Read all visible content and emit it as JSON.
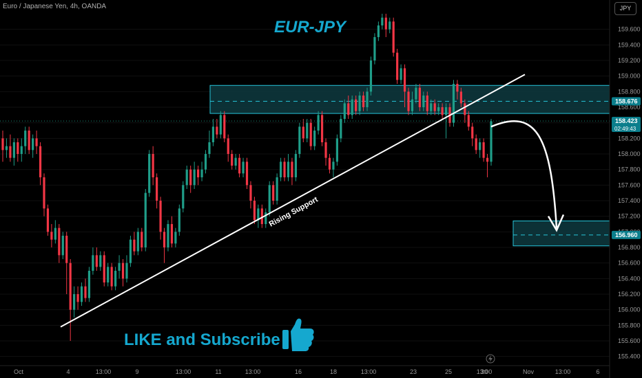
{
  "header": {
    "symbol_line": "Euro / Japanese Yen, 4h, OANDA",
    "currency": "JPY"
  },
  "overlay_text": {
    "title": "EUR-JPY",
    "trendline_label": "Rising Support",
    "cta": "LIKE and Subscribe"
  },
  "icons": {
    "thumbs_up": "thumbs-up-icon",
    "lightning": "lightning-icon"
  },
  "colors": {
    "up": "#1f9e89",
    "down": "#f23645",
    "zone_fill": "#0e3a40",
    "zone_border": "#26c6da",
    "title": "#15a8cf",
    "cta": "#15a8cf",
    "price_tag": "#0b7e8c",
    "grid": "#111111"
  },
  "price_axis": {
    "ticks": [
      "159.600",
      "159.400",
      "159.200",
      "159.000",
      "158.800",
      "158.600",
      "158.400",
      "158.200",
      "158.000",
      "157.800",
      "157.600",
      "157.400",
      "157.200",
      "157.000",
      "156.800",
      "156.600",
      "156.400",
      "156.200",
      "156.000",
      "155.800",
      "155.600",
      "155.400"
    ],
    "tags": [
      {
        "value": "158.676",
        "sub": "",
        "price": 158.676
      },
      {
        "value": "158.423",
        "sub": "02:49:43",
        "price": 158.423
      },
      {
        "value": "156.960",
        "sub": "",
        "price": 156.96
      }
    ]
  },
  "time_axis": [
    "Oct",
    "4",
    "13:00",
    "9",
    "13:00",
    "11",
    "13:00",
    "16",
    "18",
    "13:00",
    "23",
    "25",
    "13:00",
    "30",
    "Nov",
    "13:00",
    "6"
  ],
  "chart_data": {
    "type": "candlestick",
    "title": "EUR-JPY",
    "ylabel": "JPY",
    "ylim": [
      155.3,
      159.8
    ],
    "x_count": 160,
    "candles": [
      [
        158.2,
        158.05,
        158.3,
        157.9
      ],
      [
        158.05,
        158.1,
        158.2,
        157.95
      ],
      [
        158.1,
        157.95,
        158.25,
        157.9
      ],
      [
        157.95,
        158.15,
        158.2,
        157.85
      ],
      [
        158.15,
        158.0,
        158.2,
        157.9
      ],
      [
        158.0,
        158.1,
        158.2,
        157.9
      ],
      [
        158.1,
        158.3,
        158.35,
        158.0
      ],
      [
        158.3,
        158.05,
        158.35,
        158.0
      ],
      [
        158.05,
        158.2,
        158.25,
        157.95
      ],
      [
        158.2,
        158.1,
        158.3,
        158.0
      ],
      [
        158.1,
        157.7,
        158.15,
        157.6
      ],
      [
        157.7,
        157.3,
        157.75,
        157.2
      ],
      [
        157.3,
        157.0,
        157.35,
        156.95
      ],
      [
        157.0,
        156.9,
        157.1,
        156.8
      ],
      [
        156.9,
        157.05,
        157.15,
        156.85
      ],
      [
        157.05,
        156.7,
        157.1,
        156.6
      ],
      [
        156.7,
        156.95,
        157.0,
        156.65
      ],
      [
        156.95,
        156.6,
        157.0,
        156.2
      ],
      [
        156.6,
        156.0,
        156.65,
        155.6
      ],
      [
        156.0,
        156.2,
        156.3,
        155.9
      ],
      [
        156.2,
        156.1,
        156.3,
        156.0
      ],
      [
        156.1,
        156.3,
        156.35,
        156.05
      ],
      [
        156.3,
        156.15,
        156.4,
        156.1
      ],
      [
        156.15,
        156.5,
        156.55,
        156.1
      ],
      [
        156.5,
        156.7,
        156.8,
        156.45
      ],
      [
        156.7,
        156.55,
        156.8,
        156.5
      ],
      [
        156.55,
        156.7,
        156.75,
        156.5
      ],
      [
        156.7,
        156.35,
        156.75,
        156.3
      ],
      [
        156.35,
        156.55,
        156.6,
        156.3
      ],
      [
        156.55,
        156.3,
        156.6,
        156.25
      ],
      [
        156.3,
        156.5,
        156.55,
        156.25
      ],
      [
        156.5,
        156.6,
        156.7,
        156.4
      ],
      [
        156.6,
        156.4,
        156.65,
        156.3
      ],
      [
        156.4,
        156.6,
        156.7,
        156.35
      ],
      [
        156.6,
        156.9,
        156.95,
        156.55
      ],
      [
        156.9,
        156.75,
        157.0,
        156.7
      ],
      [
        156.75,
        157.0,
        157.05,
        156.7
      ],
      [
        157.0,
        156.8,
        157.05,
        156.75
      ],
      [
        156.8,
        157.5,
        157.55,
        156.75
      ],
      [
        157.5,
        158.0,
        158.05,
        157.45
      ],
      [
        158.0,
        157.7,
        158.1,
        157.6
      ],
      [
        157.7,
        157.4,
        157.75,
        157.3
      ],
      [
        157.4,
        157.0,
        157.45,
        156.9
      ],
      [
        157.0,
        156.8,
        157.05,
        156.6
      ],
      [
        156.8,
        157.1,
        157.15,
        156.75
      ],
      [
        157.1,
        156.85,
        157.2,
        156.8
      ],
      [
        156.85,
        157.0,
        157.05,
        156.8
      ],
      [
        157.0,
        157.3,
        157.35,
        156.95
      ],
      [
        157.3,
        157.6,
        157.65,
        157.25
      ],
      [
        157.6,
        157.8,
        157.85,
        157.55
      ],
      [
        157.8,
        157.6,
        157.85,
        157.5
      ],
      [
        157.6,
        157.8,
        157.9,
        157.55
      ],
      [
        157.8,
        157.7,
        157.85,
        157.6
      ],
      [
        157.7,
        157.8,
        157.9,
        157.65
      ],
      [
        157.8,
        158.0,
        158.05,
        157.75
      ],
      [
        158.0,
        158.15,
        158.3,
        157.95
      ],
      [
        158.15,
        158.35,
        158.45,
        158.1
      ],
      [
        158.35,
        158.25,
        158.45,
        158.2
      ],
      [
        158.25,
        158.5,
        158.55,
        158.2
      ],
      [
        158.5,
        158.2,
        158.55,
        158.15
      ],
      [
        158.2,
        158.0,
        158.25,
        157.9
      ],
      [
        158.0,
        157.85,
        158.05,
        157.8
      ],
      [
        157.85,
        157.95,
        158.0,
        157.8
      ],
      [
        157.95,
        157.75,
        158.0,
        157.7
      ],
      [
        157.75,
        157.9,
        157.95,
        157.7
      ],
      [
        157.9,
        157.6,
        157.95,
        157.55
      ],
      [
        157.6,
        157.4,
        157.65,
        157.3
      ],
      [
        157.4,
        157.15,
        157.45,
        157.1
      ],
      [
        157.15,
        157.3,
        157.35,
        157.05
      ],
      [
        157.3,
        157.1,
        157.35,
        157.05
      ],
      [
        157.1,
        157.25,
        157.3,
        157.05
      ],
      [
        157.25,
        157.6,
        157.65,
        157.2
      ],
      [
        157.6,
        157.4,
        157.65,
        157.35
      ],
      [
        157.4,
        157.7,
        157.75,
        157.35
      ],
      [
        157.7,
        157.9,
        157.95,
        157.65
      ],
      [
        157.9,
        157.7,
        157.95,
        157.65
      ],
      [
        157.7,
        157.9,
        158.0,
        157.65
      ],
      [
        157.9,
        157.7,
        157.95,
        157.6
      ],
      [
        157.7,
        158.0,
        158.05,
        157.65
      ],
      [
        158.0,
        158.35,
        158.4,
        157.95
      ],
      [
        158.35,
        158.2,
        158.45,
        158.15
      ],
      [
        158.2,
        158.4,
        158.45,
        158.15
      ],
      [
        158.4,
        158.1,
        158.45,
        158.05
      ],
      [
        158.1,
        158.3,
        158.35,
        158.05
      ],
      [
        158.3,
        158.5,
        158.55,
        158.25
      ],
      [
        158.5,
        158.15,
        158.55,
        158.1
      ],
      [
        158.15,
        157.95,
        158.2,
        157.85
      ],
      [
        157.95,
        157.8,
        158.0,
        157.75
      ],
      [
        157.8,
        157.9,
        157.95,
        157.7
      ],
      [
        157.9,
        158.2,
        158.25,
        157.85
      ],
      [
        158.2,
        158.45,
        158.5,
        158.15
      ],
      [
        158.45,
        158.65,
        158.7,
        158.4
      ],
      [
        158.65,
        158.5,
        158.75,
        158.45
      ],
      [
        158.5,
        158.7,
        158.75,
        158.45
      ],
      [
        158.7,
        158.55,
        158.75,
        158.5
      ],
      [
        158.55,
        158.75,
        158.8,
        158.5
      ],
      [
        158.75,
        158.6,
        158.8,
        158.55
      ],
      [
        158.6,
        158.8,
        158.85,
        158.55
      ],
      [
        158.8,
        159.2,
        159.25,
        158.75
      ],
      [
        159.2,
        159.5,
        159.55,
        159.15
      ],
      [
        159.5,
        159.65,
        159.7,
        159.45
      ],
      [
        159.65,
        159.75,
        159.8,
        159.6
      ],
      [
        159.75,
        159.6,
        159.8,
        159.5
      ],
      [
        159.6,
        159.7,
        159.75,
        159.55
      ],
      [
        159.7,
        159.3,
        159.75,
        159.25
      ],
      [
        159.3,
        158.95,
        159.35,
        158.9
      ],
      [
        158.95,
        159.1,
        159.15,
        158.9
      ],
      [
        159.1,
        158.8,
        159.15,
        158.6
      ],
      [
        158.8,
        158.55,
        158.85,
        158.5
      ],
      [
        158.55,
        158.7,
        158.8,
        158.5
      ],
      [
        158.7,
        158.85,
        158.9,
        158.65
      ],
      [
        158.85,
        158.6,
        158.9,
        158.55
      ],
      [
        158.6,
        158.75,
        158.8,
        158.55
      ],
      [
        158.75,
        158.55,
        158.8,
        158.5
      ],
      [
        158.55,
        158.65,
        158.7,
        158.5
      ],
      [
        158.65,
        158.55,
        158.7,
        158.5
      ],
      [
        158.55,
        158.6,
        158.65,
        158.5
      ],
      [
        158.6,
        158.5,
        158.65,
        158.45
      ],
      [
        158.5,
        158.6,
        158.65,
        158.2
      ],
      [
        158.6,
        158.4,
        158.65,
        158.35
      ],
      [
        158.4,
        158.9,
        158.95,
        158.35
      ],
      [
        158.9,
        158.8,
        158.95,
        158.7
      ],
      [
        158.8,
        158.65,
        158.85,
        158.6
      ],
      [
        158.65,
        158.5,
        158.7,
        158.4
      ],
      [
        158.5,
        158.35,
        158.55,
        158.3
      ],
      [
        158.35,
        158.2,
        158.4,
        158.1
      ],
      [
        158.2,
        158.05,
        158.25,
        158.0
      ],
      [
        158.05,
        158.15,
        158.2,
        157.95
      ],
      [
        158.15,
        157.95,
        158.2,
        157.9
      ],
      [
        157.95,
        157.9,
        158.0,
        157.7
      ],
      [
        157.9,
        158.42,
        158.45,
        157.85
      ]
    ],
    "zones": [
      {
        "low": 158.52,
        "high": 158.88,
        "level": 158.676
      },
      {
        "low": 156.82,
        "high": 157.14,
        "level": 156.96
      }
    ],
    "trendline": {
      "from": [
        4,
        155.75
      ],
      "to": [
        149,
        159.05
      ]
    },
    "annotations": [
      "Rising Support",
      "EUR-JPY",
      "LIKE and Subscribe"
    ]
  }
}
